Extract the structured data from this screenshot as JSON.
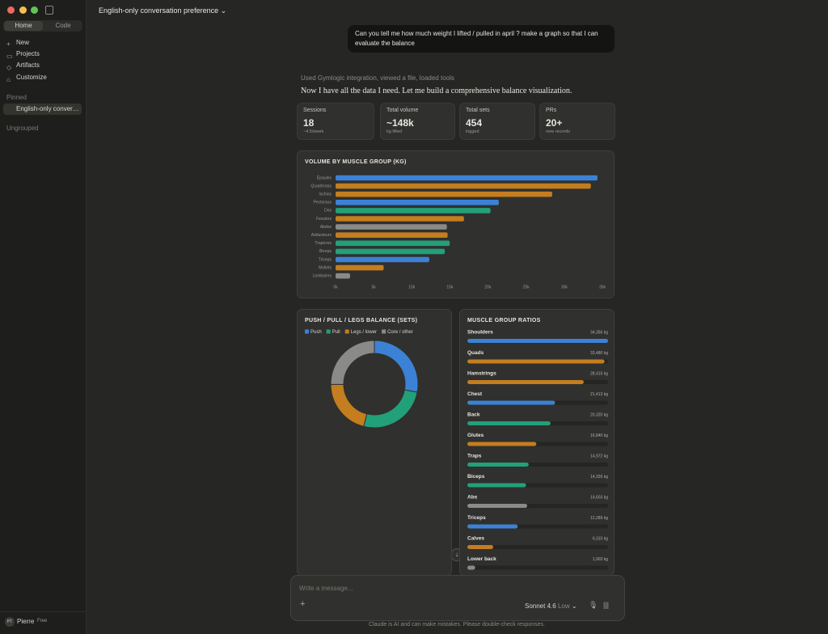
{
  "sidebar": {
    "tabs": [
      "Home",
      "Code"
    ],
    "nav": [
      "New",
      "Projects",
      "Artifacts",
      "Customize"
    ],
    "pinned_heading": "Pinned",
    "pinned": [
      "English-only conversation preference"
    ],
    "ungrouped": "Ungrouped",
    "user": {
      "initials": "PT",
      "name": "Pierre",
      "plan": "Free"
    }
  },
  "header": {
    "title": "English-only conversation preference"
  },
  "messages": {
    "user": "Can you tell me how much weight I lifted / pulled in april ? make a graph so that I can evaluate the balance",
    "tools": "Used Gymlogic integration, viewed a file, loaded tools",
    "assistant": "Now I have all the data I need. Let me build a comprehensive balance visualization."
  },
  "stats": [
    {
      "label": "Sessions",
      "value": 18,
      "note": "~4.5/week"
    },
    {
      "label": "Total volume",
      "value": "~148k",
      "note": "kg lifted"
    },
    {
      "label": "Total sets",
      "value": 454,
      "note": "logged"
    },
    {
      "label": "PRs",
      "value": "20+",
      "note": "new records"
    }
  ],
  "chart_data": [
    {
      "type": "bar",
      "title": "VOLUME BY MUSCLE GROUP (KG)",
      "categories": [
        "Épaules",
        "Quadriceps",
        "Ischios",
        "Pectoraux",
        "Dos",
        "Fessiers",
        "Abdos",
        "Adducteurs",
        "Trapèzes",
        "Biceps",
        "Triceps",
        "Mollets",
        "Lombaires"
      ],
      "values": [
        34356,
        33480,
        28415,
        21413,
        20320,
        16840,
        14603,
        14700,
        14972,
        14326,
        12289,
        6310,
        1903
      ],
      "colors": [
        "#3b82d6",
        "#c47d1f",
        "#c47d1f",
        "#3b82d6",
        "#22a079",
        "#c47d1f",
        "#8a8a88",
        "#c47d1f",
        "#22a079",
        "#22a079",
        "#3b82d6",
        "#c47d1f",
        "#8a8a88"
      ],
      "xlim": [
        0,
        35000
      ],
      "xticks": [
        {
          "value": 0,
          "label": "0k"
        },
        {
          "value": 5000,
          "label": "5k"
        },
        {
          "value": 10000,
          "label": "10k"
        },
        {
          "value": 15000,
          "label": "15k"
        },
        {
          "value": 20000,
          "label": "20k"
        },
        {
          "value": 25000,
          "label": "25k"
        },
        {
          "value": 30000,
          "label": "30k"
        },
        {
          "value": 35000,
          "label": "35k"
        }
      ]
    },
    {
      "type": "doughnut",
      "title": "PUSH / PULL / LEGS BALANCE (SETS)",
      "categories": [
        "Push",
        "Pull",
        "Legs / lower",
        "Core / other"
      ],
      "values": [
        127,
        118,
        95,
        114
      ],
      "colors": [
        "#3b82d6",
        "#22a079",
        "#c47d1f",
        "#8a8a88"
      ]
    },
    {
      "type": "bar",
      "title": "MUSCLE GROUP RATIOS",
      "categories": [
        "Shoulders",
        "Quads",
        "Hamstrings",
        "Chest",
        "Back",
        "Glutes",
        "Traps",
        "Biceps",
        "Abs",
        "Triceps",
        "Calves",
        "Lower back"
      ],
      "values": [
        34356,
        33480,
        28415,
        21413,
        20320,
        16840,
        14972,
        14326,
        14603,
        12289,
        6310,
        1903
      ],
      "value_labels": [
        "34,356 kg",
        "33,480 kg",
        "28,415 kg",
        "21,413 kg",
        "20,320 kg",
        "16,840 kg",
        "14,972 kg",
        "14,326 kg",
        "14,603 kg",
        "12,289 kg",
        "6,310 kg",
        "1,903 kg"
      ],
      "colors": [
        "#3b82d6",
        "#c47d1f",
        "#c47d1f",
        "#3b82d6",
        "#22a079",
        "#c47d1f",
        "#22a079",
        "#22a079",
        "#8a8a88",
        "#3b82d6",
        "#c47d1f",
        "#8a8a88"
      ]
    }
  ],
  "composer": {
    "placeholder": "Write a message...",
    "model": "Sonnet 4.6",
    "effort": "Low",
    "disclaimer": "Claude is AI and can make mistakes. Please double-check responses."
  }
}
